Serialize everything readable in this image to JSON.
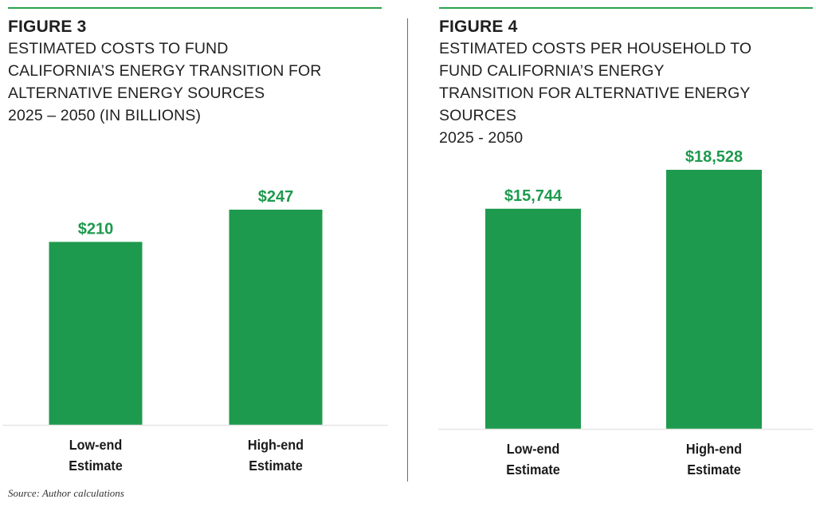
{
  "colors": {
    "bar": "#1e9a4e",
    "value_label": "#1e9a4e",
    "rule": "#2aa24a",
    "axis": "#e6e6e6"
  },
  "source": "Source: Author calculations",
  "chart_data": [
    {
      "type": "bar",
      "figure_label": "FIGURE 3",
      "title_lines": [
        "ESTIMATED COSTS TO FUND",
        "CALIFORNIA’S ENERGY TRANSITION FOR",
        "ALTERNATIVE ENERGY SOURCES",
        "2025 – 2050 (IN BILLIONS)"
      ],
      "categories": [
        [
          "Low-end",
          "Estimate"
        ],
        [
          "High-end",
          "Estimate"
        ]
      ],
      "values": [
        210,
        247
      ],
      "value_labels": [
        "$210",
        "$247"
      ],
      "xlabel": "",
      "ylabel": "",
      "ylim": [
        0,
        300
      ],
      "grid": false
    },
    {
      "type": "bar",
      "figure_label": "FIGURE 4",
      "title_lines": [
        "ESTIMATED COSTS PER HOUSEHOLD TO",
        "FUND CALIFORNIA’S ENERGY",
        "TRANSITION FOR ALTERNATIVE ENERGY",
        "SOURCES",
        "2025 - 2050"
      ],
      "categories": [
        [
          "Low-end",
          "Estimate"
        ],
        [
          "High-end",
          "Estimate"
        ]
      ],
      "values": [
        15744,
        18528
      ],
      "value_labels": [
        "$15,744",
        "$18,528"
      ],
      "xlabel": "",
      "ylabel": "",
      "ylim": [
        0,
        20000
      ],
      "grid": false
    }
  ]
}
